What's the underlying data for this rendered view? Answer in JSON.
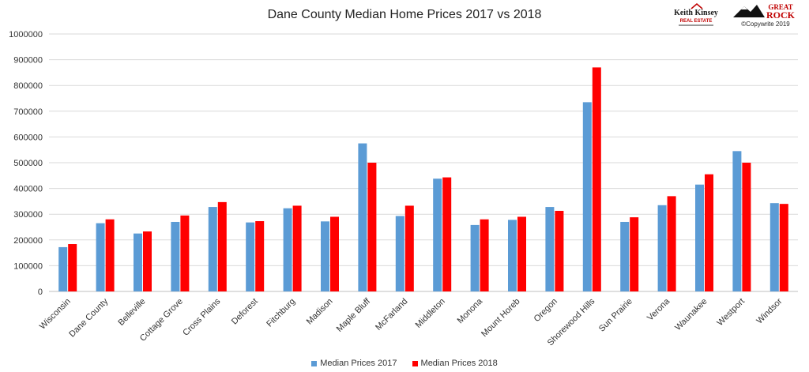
{
  "chart_data": {
    "type": "bar",
    "title": "Dane County Median Home Prices 2017 vs 2018",
    "categories": [
      "Wisconsin",
      "Dane County",
      "Belleville",
      "Cottage Grove",
      "Cross Plains",
      "Deforest",
      "Fitchburg",
      "Madison",
      "Maple Bluff",
      "McFarland",
      "Middleton",
      "Monona",
      "Mount Horeb",
      "Oregon",
      "Shorewood Hills",
      "Sun Prairie",
      "Verona",
      "Waunakee",
      "Westport",
      "Windsor"
    ],
    "series": [
      {
        "name": "Median Prices 2017",
        "color": "#5b9bd5",
        "values": [
          172000,
          265000,
          225000,
          270000,
          328000,
          268000,
          323000,
          272000,
          575000,
          293000,
          438000,
          258000,
          278000,
          328000,
          735000,
          270000,
          335000,
          415000,
          545000,
          343000
        ]
      },
      {
        "name": "Median Prices 2018",
        "color": "#ff0000",
        "values": [
          184000,
          280000,
          233000,
          295000,
          347000,
          273000,
          333000,
          290000,
          500000,
          333000,
          443000,
          280000,
          290000,
          313000,
          870000,
          288000,
          370000,
          455000,
          500000,
          340000
        ]
      }
    ],
    "ylim": [
      0,
      1000000
    ],
    "yticks": [
      "0",
      "100000",
      "200000",
      "300000",
      "400000",
      "500000",
      "600000",
      "700000",
      "800000",
      "900000",
      "1000000"
    ],
    "xlabel": "",
    "ylabel": "",
    "grid": true,
    "legend_position": "bottom"
  },
  "logos": {
    "left": {
      "line1": "Keith Kinsey",
      "line2": "REAL ESTATE"
    },
    "right": {
      "line1": "GREAT",
      "line2": "ROCK"
    }
  },
  "copyright": "©Copywrite 2019"
}
